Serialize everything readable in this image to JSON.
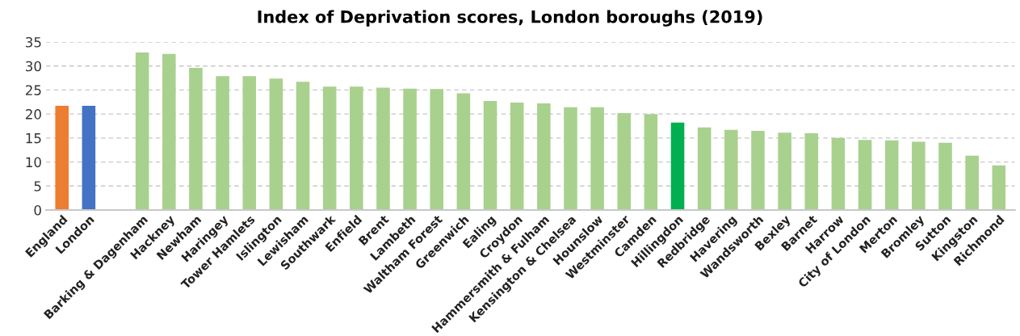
{
  "chart_data": {
    "type": "bar",
    "title": "Index of Deprivation scores, London boroughs (2019)",
    "categories": [
      "England",
      "London",
      null,
      "Barking & Dagenham",
      "Hackney",
      "Newham",
      "Haringey",
      "Tower Hamlets",
      "Islington",
      "Lewisham",
      "Southwark",
      "Enfield",
      "Brent",
      "Lambeth",
      "Waltham Forest",
      "Greenwich",
      "Ealing",
      "Croydon",
      "Hammersmith & Fulham",
      "Kensington & Chelsea",
      "Hounslow",
      "Westminster",
      "Camden",
      "Hillingdon",
      "Redbridge",
      "Havering",
      "Wandsworth",
      "Bexley",
      "Barnet",
      "Harrow",
      "City of London",
      "Merton",
      "Bromley",
      "Sutton",
      "Kingston",
      "Richmond"
    ],
    "values": [
      21.7,
      21.7,
      null,
      32.8,
      32.5,
      29.6,
      27.9,
      27.9,
      27.4,
      26.7,
      25.7,
      25.7,
      25.5,
      25.3,
      25.2,
      24.3,
      22.7,
      22.4,
      22.2,
      21.4,
      21.4,
      20.2,
      20.0,
      18.2,
      17.2,
      16.7,
      16.5,
      16.1,
      16.0,
      15.0,
      14.6,
      14.5,
      14.2,
      14.0,
      11.3,
      9.3
    ],
    "colors": [
      "#ed7d31",
      "#4472c4",
      "#a9d18e",
      "#a9d18e",
      "#a9d18e",
      "#a9d18e",
      "#a9d18e",
      "#a9d18e",
      "#a9d18e",
      "#a9d18e",
      "#a9d18e",
      "#a9d18e",
      "#a9d18e",
      "#a9d18e",
      "#a9d18e",
      "#a9d18e",
      "#a9d18e",
      "#a9d18e",
      "#a9d18e",
      "#a9d18e",
      "#a9d18e",
      "#a9d18e",
      "#a9d18e",
      "#00b050",
      "#a9d18e",
      "#a9d18e",
      "#a9d18e",
      "#a9d18e",
      "#a9d18e",
      "#a9d18e",
      "#a9d18e",
      "#a9d18e",
      "#a9d18e",
      "#a9d18e",
      "#a9d18e",
      "#a9d18e"
    ],
    "ylim": [
      0,
      35
    ],
    "yticks": [
      0,
      5,
      10,
      15,
      20,
      25,
      30,
      35
    ],
    "grid": "y",
    "legend": false
  }
}
